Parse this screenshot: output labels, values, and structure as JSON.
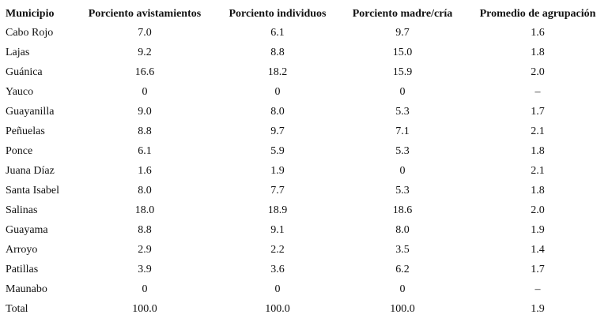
{
  "table": {
    "header": [
      "Municipio",
      "Porciento avistamientos",
      "Porciento individuos",
      "Porciento madre/cría",
      "Promedio de agrupación"
    ],
    "rows": [
      [
        "Cabo Rojo",
        "7.0",
        "6.1",
        "9.7",
        "1.6"
      ],
      [
        "Lajas",
        "9.2",
        "8.8",
        "15.0",
        "1.8"
      ],
      [
        "Guánica",
        "16.6",
        "18.2",
        "15.9",
        "2.0"
      ],
      [
        "Yauco",
        "0",
        "0",
        "0",
        "–"
      ],
      [
        "Guayanilla",
        "9.0",
        "8.0",
        "5.3",
        "1.7"
      ],
      [
        "Peñuelas",
        "8.8",
        "9.7",
        "7.1",
        "2.1"
      ],
      [
        "Ponce",
        "6.1",
        "5.9",
        "5.3",
        "1.8"
      ],
      [
        "Juana Díaz",
        "1.6",
        "1.9",
        "0",
        "2.1"
      ],
      [
        "Santa Isabel",
        "8.0",
        "7.7",
        "5.3",
        "1.8"
      ],
      [
        "Salinas",
        "18.0",
        "18.9",
        "18.6",
        "2.0"
      ],
      [
        "Guayama",
        "8.8",
        "9.1",
        "8.0",
        "1.9"
      ],
      [
        "Arroyo",
        "2.9",
        "2.2",
        "3.5",
        "1.4"
      ],
      [
        "Patillas",
        "3.9",
        "3.6",
        "6.2",
        "1.7"
      ],
      [
        "Maunabo",
        "0",
        "0",
        "0",
        "–"
      ],
      [
        "Total",
        "100.0",
        "100.0",
        "100.0",
        "1.9"
      ]
    ]
  }
}
